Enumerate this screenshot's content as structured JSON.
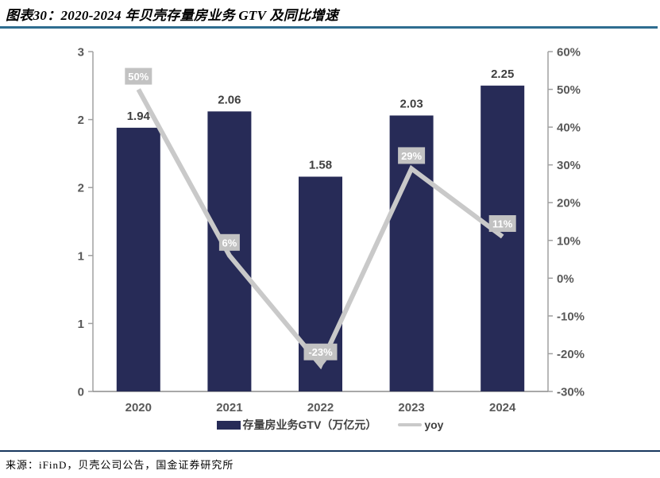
{
  "header": {
    "title": "图表30：2020-2024 年贝壳存量房业务 GTV 及同比增速"
  },
  "footer": {
    "source": "来源：iFinD，贝壳公司公告，国金证券研究所"
  },
  "colors": {
    "bar": "#272b57",
    "line": "#c9c9c9",
    "label_box": "#c2c2c2",
    "label_box_text": "#ffffff",
    "value_text": "#3f3f3f",
    "axis_text": "#595959",
    "axis_line": "#a0a0a0",
    "bottom_axis_line": "#8c8c8c",
    "rule_top": "#2e6d90",
    "rule_bottom": "#17375e"
  },
  "chart_data": {
    "type": "bar+line combo",
    "title": "2020-2024 年贝壳存量房业务 GTV 及同比增速",
    "categories": [
      "2020",
      "2021",
      "2022",
      "2023",
      "2024"
    ],
    "series": [
      {
        "name": "存量房业务GTV（万亿元）",
        "type": "bar",
        "axis": "left",
        "values": [
          1.94,
          2.06,
          1.58,
          2.03,
          2.25
        ],
        "labels": [
          "1.94",
          "2.06",
          "1.58",
          "2.03",
          "2.25"
        ]
      },
      {
        "name": "yoy",
        "type": "line",
        "axis": "right",
        "values": [
          50,
          6,
          -23,
          29,
          11
        ],
        "labels": [
          "50%",
          "6%",
          "-23%",
          "29%",
          "11%"
        ],
        "label_pointers": [
          false,
          false,
          true,
          false,
          false
        ]
      }
    ],
    "left_axis": {
      "min": 0,
      "max": 2.5,
      "tick_values": [
        2.5,
        2.0,
        1.5,
        1.0,
        0.5,
        0
      ],
      "tick_labels": [
        "3",
        "2",
        "2",
        "1",
        "1",
        "0"
      ]
    },
    "right_axis": {
      "min": -30,
      "max": 60,
      "tick_step": 10,
      "tick_labels": [
        "60%",
        "50%",
        "40%",
        "30%",
        "20%",
        "10%",
        "0%",
        "-10%",
        "-20%",
        "-30%"
      ]
    },
    "grid": false,
    "legend_position": "bottom-center",
    "legend": [
      {
        "label": "存量房业务GTV（万亿元）",
        "swatch": "bar"
      },
      {
        "label": "yoy",
        "swatch": "line"
      }
    ]
  }
}
